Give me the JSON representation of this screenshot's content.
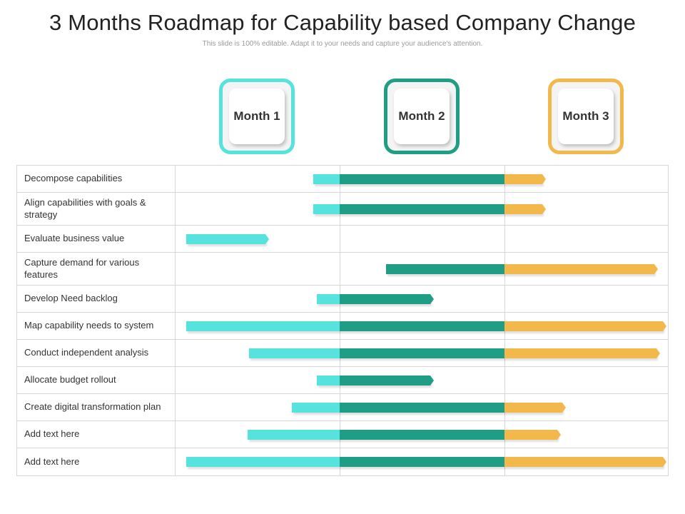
{
  "title": "3 Months Roadmap for Capability based Company Change",
  "subtitle": "This slide is 100% editable. Adapt it to your needs and capture your audience's attention.",
  "colors": {
    "month1": "#56e2dd",
    "month2": "#1f9e85",
    "month3": "#f2b84b"
  },
  "months": [
    {
      "label": "Month 1"
    },
    {
      "label": "Month 2"
    },
    {
      "label": "Month 3"
    }
  ],
  "tasks": [
    {
      "label": "Decompose capabilities",
      "start": 0.84,
      "end": 2.23
    },
    {
      "label": "Align capabilities with goals & strategy",
      "start": 0.84,
      "end": 2.23
    },
    {
      "label": "Evaluate business value",
      "start": 0.07,
      "end": 0.55
    },
    {
      "label": "Capture demand for various features",
      "start": 1.28,
      "end": 2.91
    },
    {
      "label": "Develop Need backlog",
      "start": 0.86,
      "end": 1.55
    },
    {
      "label": "Map capability needs to system",
      "start": 0.07,
      "end": 2.96
    },
    {
      "label": "Conduct independent analysis",
      "start": 0.45,
      "end": 2.92
    },
    {
      "label": "Allocate budget rollout",
      "start": 0.86,
      "end": 1.55
    },
    {
      "label": "Create digital transformation plan",
      "start": 0.71,
      "end": 2.35
    },
    {
      "label": "Add text here",
      "start": 0.44,
      "end": 2.32
    },
    {
      "label": "Add text here",
      "start": 0.07,
      "end": 2.96
    }
  ]
}
